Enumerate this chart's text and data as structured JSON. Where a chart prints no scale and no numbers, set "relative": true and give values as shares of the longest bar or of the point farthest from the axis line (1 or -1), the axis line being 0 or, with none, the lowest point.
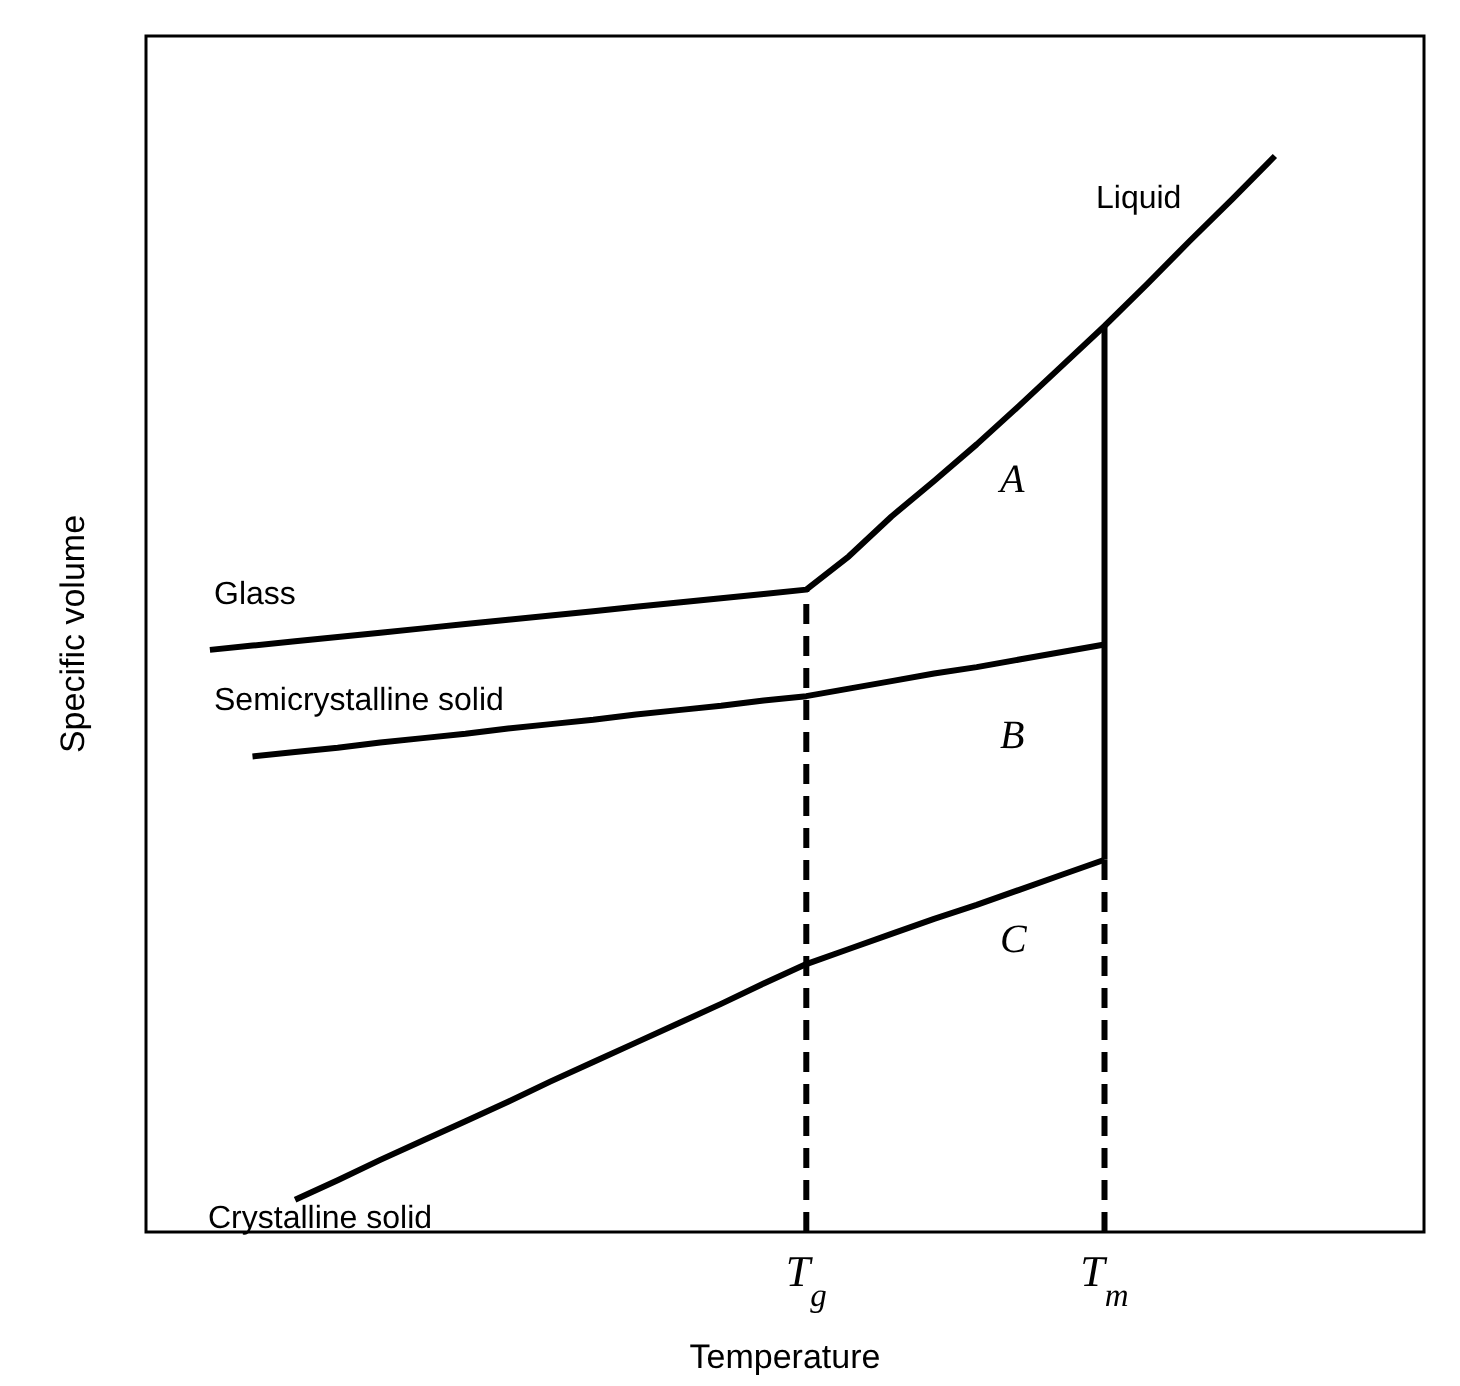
{
  "chart_data": {
    "type": "line",
    "relative": true,
    "xlabel": "Temperature",
    "ylabel": "Specific volume",
    "tick_labels": "x",
    "grid": false,
    "marker": "none",
    "categories": [
      null,
      null,
      null,
      null,
      null,
      null,
      null,
      null,
      null,
      null,
      null,
      null,
      null,
      null,
      null,
      "T$_{g}$",
      null,
      null,
      null,
      null,
      null,
      null,
      "T$_{m}$",
      null,
      null,
      null,
      null,
      null,
      null,
      null
    ],
    "series": [
      {
        "color": "#000000",
        "line_style": "solid",
        "values": [
          null,
          0.541,
          0.545,
          0.549,
          0.553,
          0.557,
          0.561,
          0.565,
          0.569,
          0.573,
          0.577,
          0.581,
          0.585,
          0.589,
          0.593,
          0.597,
          0.628,
          0.665,
          0.698,
          0.732,
          0.768,
          0.805,
          0.842,
          0.881,
          0.921,
          0.96,
          1,
          null,
          null,
          null
        ]
      },
      {
        "color": "#000000",
        "line_style": "solid",
        "values": [
          null,
          null,
          0.442,
          0.446,
          0.45,
          0.455,
          0.459,
          0.463,
          0.468,
          0.472,
          0.476,
          0.481,
          0.485,
          0.489,
          0.494,
          0.498,
          0.505,
          0.512,
          0.519,
          0.525,
          0.532,
          0.539,
          0.546,
          null,
          null,
          null,
          null,
          null,
          null,
          null
        ]
      },
      {
        "color": "#000000",
        "line_style": "solid",
        "values": [
          null,
          null,
          null,
          0.03,
          0.048,
          0.067,
          0.085,
          0.103,
          0.121,
          0.14,
          0.158,
          0.176,
          0.194,
          0.212,
          0.231,
          0.249,
          0.263,
          0.277,
          0.291,
          0.304,
          0.318,
          0.332,
          0.346,
          null,
          null,
          null,
          null,
          null,
          null,
          null
        ]
      },
      {
        "color": "#000000",
        "line_style": "solid",
        "x": [
          "T$_{m}$",
          "T$_{m}$"
        ],
        "values": [
          0.346,
          0.842
        ]
      },
      {
        "color": "#000000",
        "line_style": "dashed",
        "x": [
          "T$_{g}$",
          "T$_{g}$"
        ],
        "values": [
          0,
          0.597
        ]
      },
      {
        "color": "#000000",
        "line_style": "dashed",
        "x": [
          "T$_{m}$",
          "T$_{m}$"
        ],
        "values": [
          0,
          0.346
        ]
      }
    ],
    "annotations": [
      "Glass",
      "Liquid",
      "Semicrystalline solid",
      "Crystalline solid",
      "A",
      "B",
      "C"
    ]
  }
}
